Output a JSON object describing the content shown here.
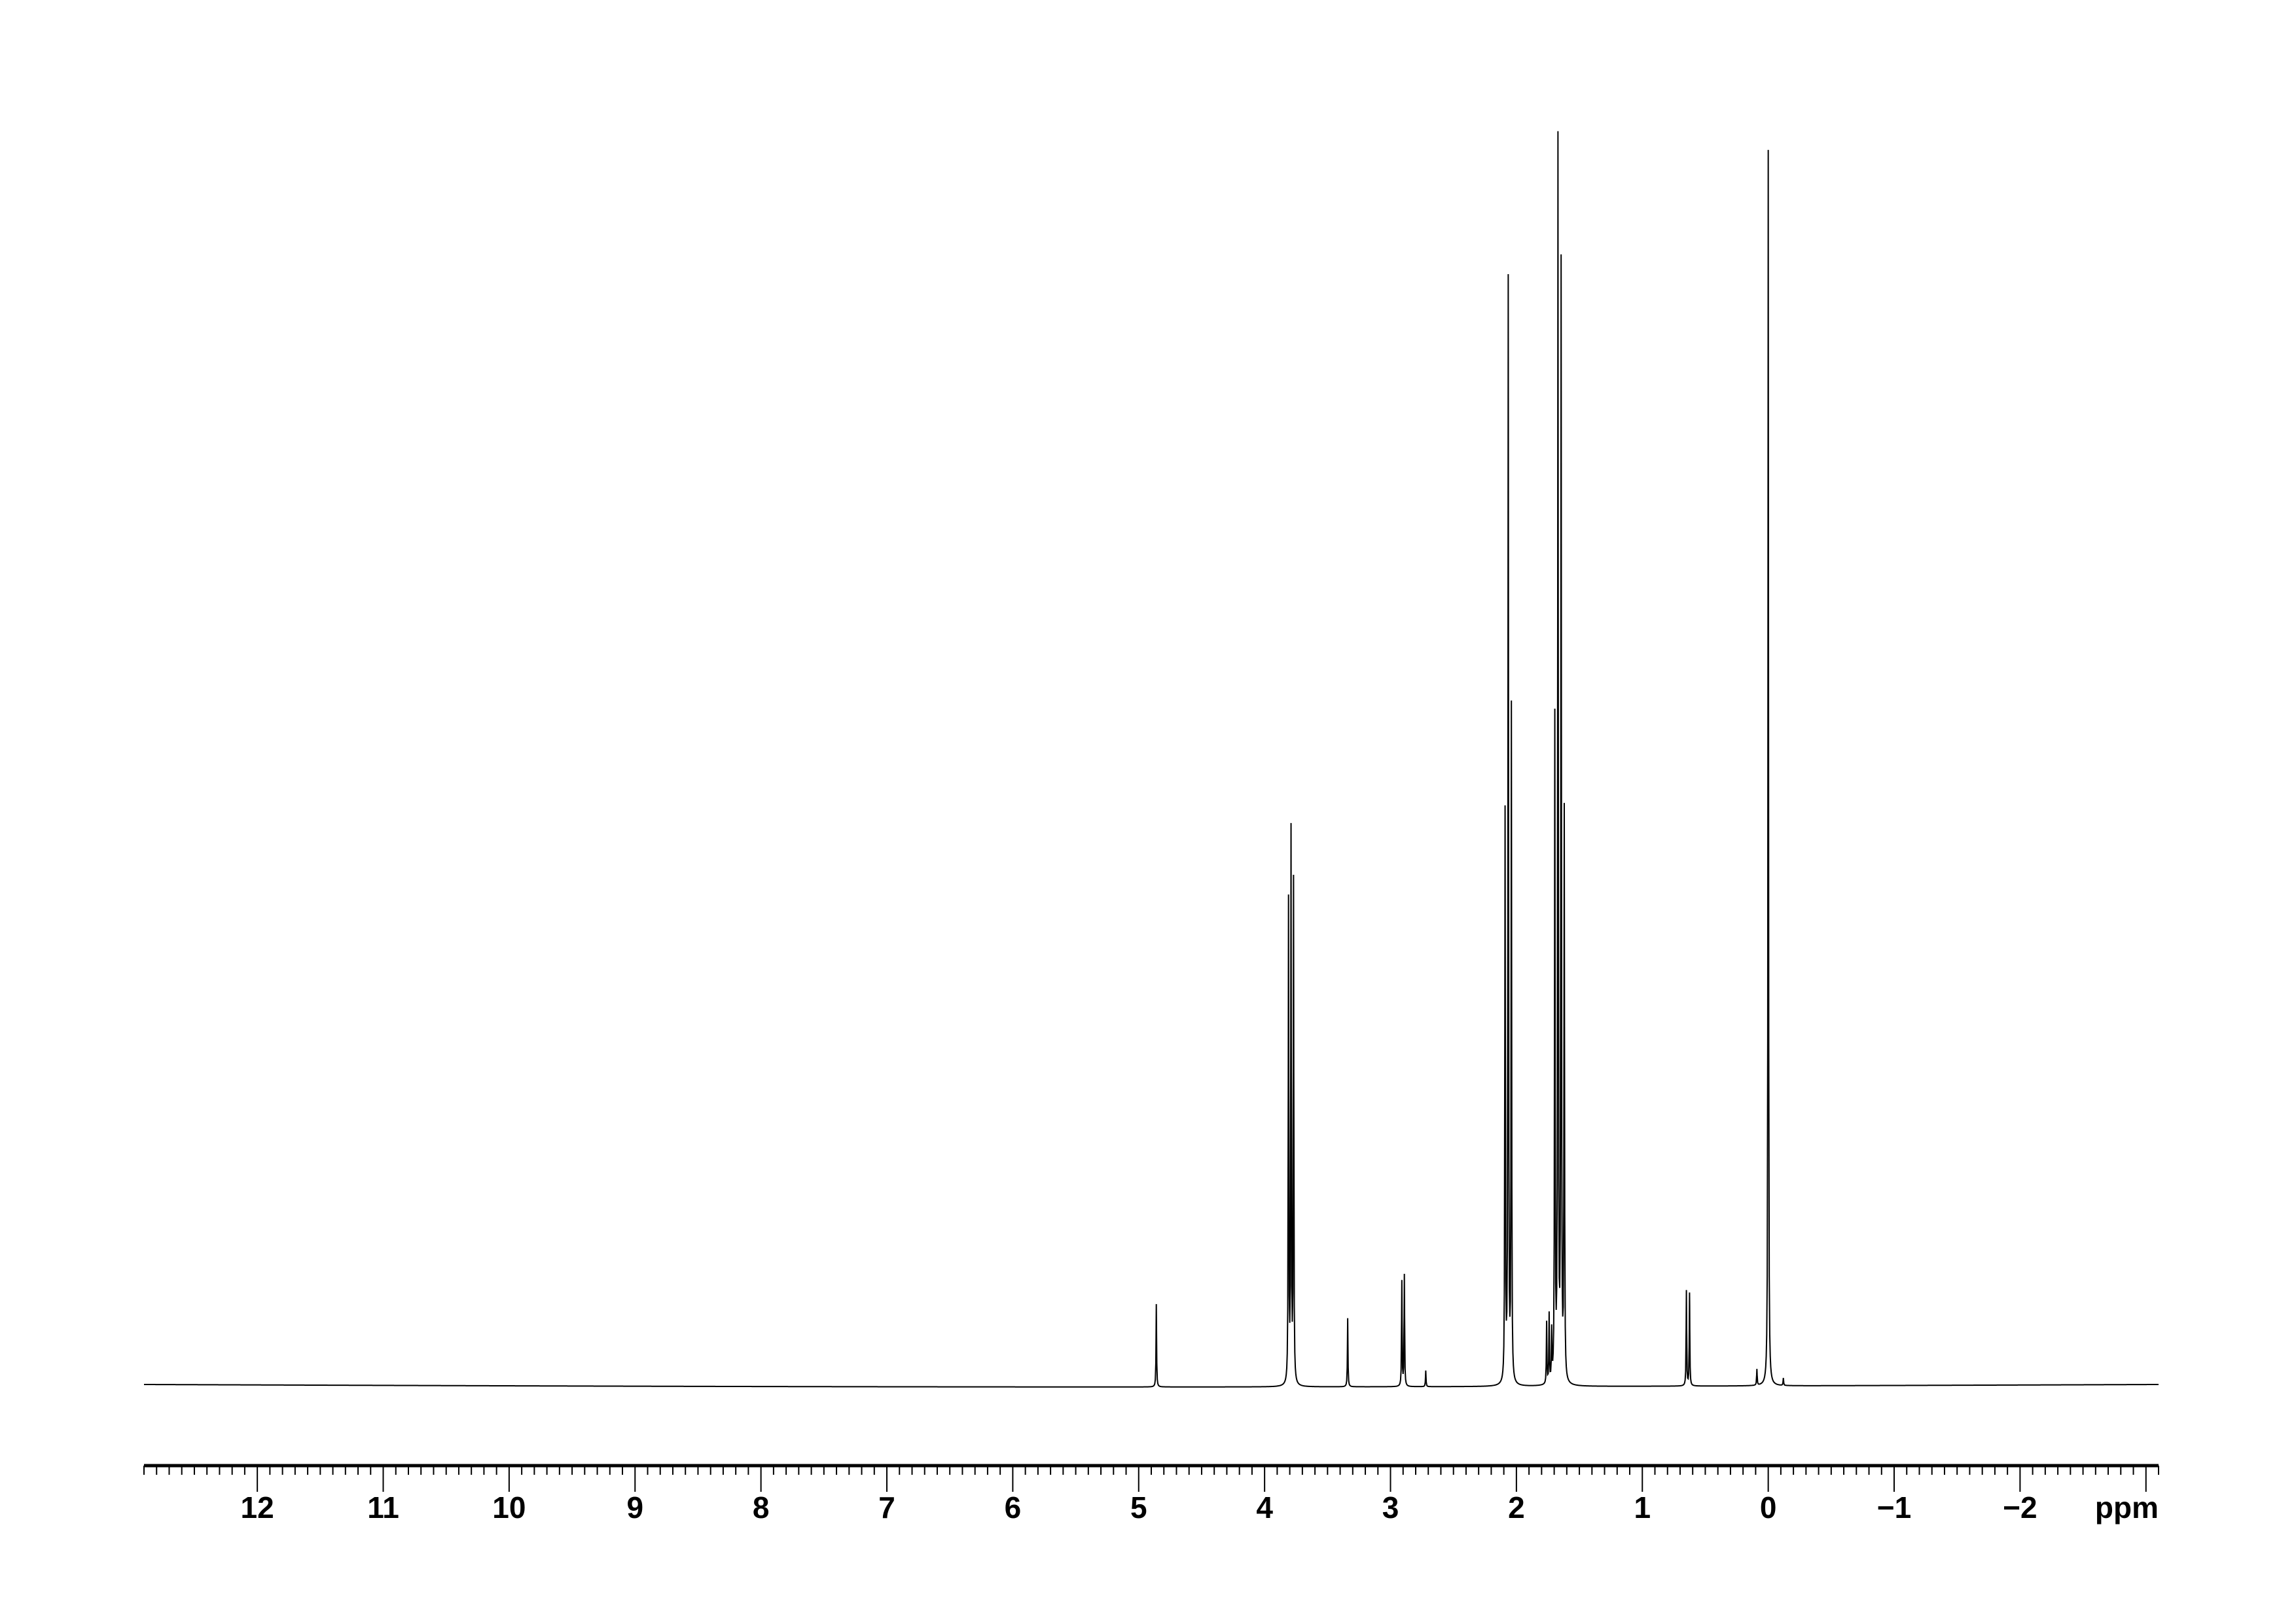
{
  "chart_data": {
    "type": "line",
    "title": "",
    "xlabel": "ppm",
    "ylabel": "",
    "xlim": [
      12.9,
      -3.1
    ],
    "x_reversed": true,
    "ylim": [
      0,
      1
    ],
    "grid": false,
    "line_color": "#000000",
    "x_ticks": [
      12,
      11,
      10,
      9,
      8,
      7,
      6,
      5,
      4,
      3,
      2,
      1,
      0,
      -1,
      -2
    ],
    "x_tick_labels": [
      "12",
      "11",
      "10",
      "9",
      "8",
      "7",
      "6",
      "5",
      "4",
      "3",
      "2",
      "1",
      "0",
      "−1",
      "−2"
    ],
    "minor_tick_step": 0.1,
    "peaks": [
      {
        "ppm": 4.86,
        "intensity": 0.067
      },
      {
        "ppm": 3.81,
        "intensity": 0.39
      },
      {
        "ppm": 3.79,
        "intensity": 0.444
      },
      {
        "ppm": 3.77,
        "intensity": 0.406
      },
      {
        "ppm": 3.34,
        "intensity": 0.055
      },
      {
        "ppm": 2.91,
        "intensity": 0.085
      },
      {
        "ppm": 2.89,
        "intensity": 0.09
      },
      {
        "ppm": 2.72,
        "intensity": 0.013
      },
      {
        "ppm": 2.09,
        "intensity": 0.46
      },
      {
        "ppm": 2.065,
        "intensity": 0.89
      },
      {
        "ppm": 2.04,
        "intensity": 0.545
      },
      {
        "ppm": 1.76,
        "intensity": 0.05
      },
      {
        "ppm": 1.74,
        "intensity": 0.055
      },
      {
        "ppm": 1.72,
        "intensity": 0.04
      },
      {
        "ppm": 1.695,
        "intensity": 0.535
      },
      {
        "ppm": 1.67,
        "intensity": 1.0
      },
      {
        "ppm": 1.645,
        "intensity": 0.9
      },
      {
        "ppm": 1.62,
        "intensity": 0.46
      },
      {
        "ppm": 0.65,
        "intensity": 0.077
      },
      {
        "ppm": 0.625,
        "intensity": 0.075
      },
      {
        "ppm": 0.09,
        "intensity": 0.013
      },
      {
        "ppm": 0.0,
        "intensity": 1.0
      },
      {
        "ppm": -0.12,
        "intensity": 0.006
      }
    ]
  }
}
